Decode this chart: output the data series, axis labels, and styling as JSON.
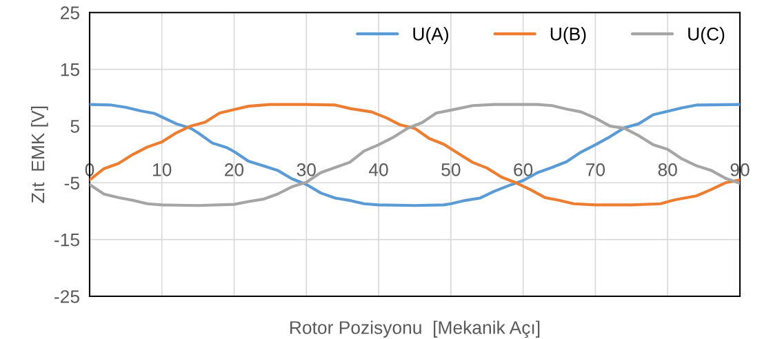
{
  "chart_data": {
    "type": "line",
    "xlabel": "Rotor Pozisyonu  [Mekanik Açı]",
    "ylabel": "Zıt  EMK [V]",
    "xlim": [
      0,
      90
    ],
    "xticks": [
      0,
      10,
      20,
      30,
      40,
      50,
      60,
      70,
      80,
      90
    ],
    "ylim": [
      -25,
      25
    ],
    "yticks": [
      -25,
      -15,
      -5,
      5,
      15,
      25
    ],
    "grid": true,
    "legend": "top right",
    "marker": "none",
    "line_style": "solid",
    "series": [
      {
        "name": "U(A)",
        "color": "#5b9bd5",
        "x": [
          0,
          3,
          5,
          7,
          9,
          10,
          12,
          14,
          15,
          17,
          19,
          20,
          22,
          24,
          26,
          28,
          30,
          32,
          34,
          36,
          38,
          40,
          45,
          49,
          50,
          52,
          54,
          56,
          58,
          60,
          62,
          64,
          66,
          68,
          70,
          72,
          74,
          76,
          78,
          80,
          82,
          84,
          90
        ],
        "values": [
          8.8,
          8.7,
          8.3,
          7.7,
          7.2,
          6.6,
          5.4,
          4.6,
          3.8,
          2.0,
          1.2,
          0.5,
          -1.2,
          -2.0,
          -2.8,
          -4.3,
          -5.3,
          -6.8,
          -7.7,
          -8.1,
          -8.7,
          -8.9,
          -9.0,
          -8.9,
          -8.7,
          -8.1,
          -7.7,
          -6.5,
          -5.5,
          -4.6,
          -3.2,
          -2.3,
          -1.3,
          0.4,
          1.7,
          3.1,
          4.7,
          5.4,
          7.0,
          7.6,
          8.2,
          8.7,
          8.8
        ]
      },
      {
        "name": "U(B)",
        "color": "#ed7d31",
        "x": [
          0,
          2,
          4,
          6,
          8,
          10,
          12,
          14,
          16,
          18,
          20,
          22,
          25,
          30,
          34,
          36,
          39,
          41,
          43,
          45,
          47,
          49,
          51,
          53,
          55,
          57,
          59,
          61,
          63,
          65,
          67,
          70,
          75,
          79,
          81,
          84,
          86,
          88,
          90
        ],
        "values": [
          -4.5,
          -2.5,
          -1.6,
          0.0,
          1.3,
          2.2,
          3.8,
          5.0,
          5.7,
          7.3,
          7.9,
          8.5,
          8.8,
          8.8,
          8.7,
          8.1,
          7.5,
          6.5,
          5.2,
          4.6,
          2.8,
          1.8,
          0.2,
          -1.4,
          -2.4,
          -4.0,
          -5.0,
          -6.2,
          -7.6,
          -8.1,
          -8.7,
          -8.9,
          -8.9,
          -8.7,
          -8.0,
          -7.3,
          -6.2,
          -5.0,
          -4.5
        ]
      },
      {
        "name": "U(C)",
        "color": "#a5a5a5",
        "x": [
          0,
          2,
          4,
          6,
          8,
          10,
          15,
          20,
          22,
          24,
          26,
          28,
          30,
          32,
          34,
          36,
          38,
          40,
          42,
          44,
          46,
          48,
          50,
          53,
          56,
          62,
          64,
          66,
          68,
          70,
          72,
          74,
          76,
          78,
          80,
          82,
          84,
          86,
          88,
          90
        ],
        "values": [
          -5.3,
          -7.0,
          -7.6,
          -8.1,
          -8.7,
          -8.9,
          -9.0,
          -8.8,
          -8.3,
          -7.9,
          -7.0,
          -5.7,
          -4.9,
          -3.2,
          -2.3,
          -1.4,
          0.6,
          1.7,
          3.0,
          4.6,
          5.6,
          7.3,
          7.8,
          8.6,
          8.8,
          8.8,
          8.6,
          8.0,
          7.5,
          6.4,
          5.0,
          4.6,
          3.3,
          1.7,
          0.9,
          -0.8,
          -2.0,
          -2.8,
          -4.2,
          -5.1
        ]
      }
    ]
  }
}
